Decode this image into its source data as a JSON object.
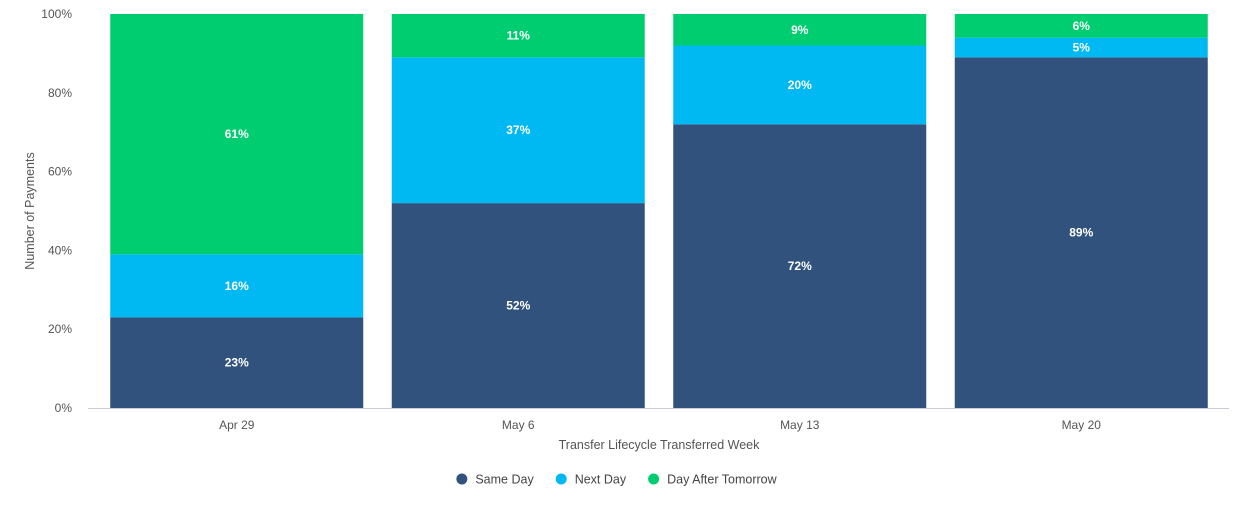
{
  "chart_data": {
    "type": "bar",
    "stacked": true,
    "categories": [
      "Apr 29",
      "May 6",
      "May 13",
      "May 20"
    ],
    "series": [
      {
        "name": "Same Day",
        "color": "#30527c",
        "values": [
          23,
          52,
          72,
          89
        ],
        "labels": [
          "23%",
          "52%",
          "72%",
          "89%"
        ]
      },
      {
        "name": "Next Day",
        "color": "#00b8f2",
        "values": [
          16,
          37,
          20,
          5
        ],
        "labels": [
          "16%",
          "37%",
          "20%",
          "5%"
        ]
      },
      {
        "name": "Day After Tomorrow",
        "color": "#00cc70",
        "values": [
          61,
          11,
          9,
          6
        ],
        "labels": [
          "61%",
          "11%",
          "9%",
          "6%"
        ]
      }
    ],
    "xlabel": "Transfer Lifecycle Transferred Week",
    "ylabel": "Number of Payments",
    "ylim": [
      0,
      100
    ],
    "yticks": [
      0,
      20,
      40,
      60,
      80,
      100
    ],
    "ytick_labels": [
      "0%",
      "20%",
      "40%",
      "60%",
      "80%",
      "100%"
    ],
    "legend_position": "bottom-center",
    "grid": false
  }
}
